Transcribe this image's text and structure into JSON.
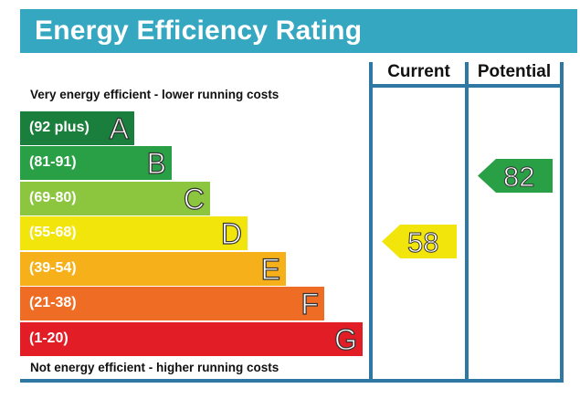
{
  "title": "Energy Efficiency Rating",
  "columns": {
    "current": "Current",
    "potential": "Potential"
  },
  "top_caption": "Very energy efficient - lower running costs",
  "bottom_caption": "Not energy efficient - higher running costs",
  "bands": [
    {
      "range": "(92 plus)",
      "letter": "A",
      "color": "#1a7f3c"
    },
    {
      "range": "(81-91)",
      "letter": "B",
      "color": "#2aa046"
    },
    {
      "range": "(69-80)",
      "letter": "C",
      "color": "#8cc63f"
    },
    {
      "range": "(55-68)",
      "letter": "D",
      "color": "#f2e50b"
    },
    {
      "range": "(39-54)",
      "letter": "E",
      "color": "#f6b11a"
    },
    {
      "range": "(21-38)",
      "letter": "F",
      "color": "#ee6c24"
    },
    {
      "range": "(1-20)",
      "letter": "G",
      "color": "#e31d26"
    }
  ],
  "current": {
    "value": "58",
    "band": "D",
    "color": "#f2e50b"
  },
  "potential": {
    "value": "82",
    "band": "B",
    "color": "#2aa046"
  }
}
